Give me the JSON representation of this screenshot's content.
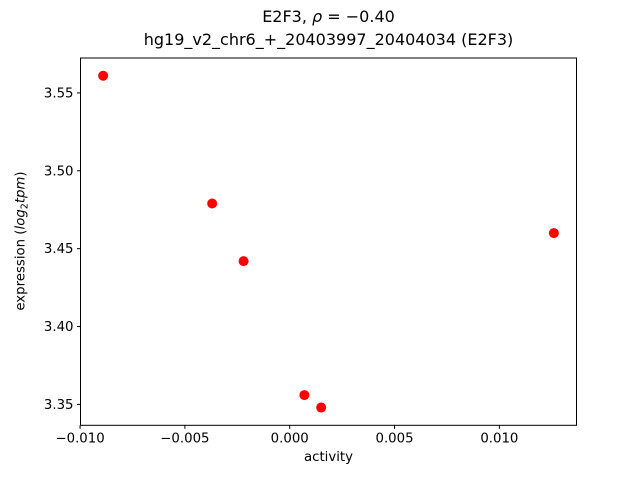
{
  "figure": {
    "title_line1_prefix": "E2F3, ",
    "title_line1_rho": "ρ",
    "title_line1_suffix": " = −0.40",
    "title_line2": "hg19_v2_chr6_+_20403997_20404034 (E2F3)",
    "xlabel": "activity",
    "ylabel_prefix": "expression (",
    "ylabel_log": "log",
    "ylabel_sub": "2",
    "ylabel_unit": "tpm",
    "ylabel_close": ")",
    "background_color": "#ffffff",
    "text_color": "#000000",
    "marker_color": "#ff0000"
  },
  "chart_data": {
    "type": "scatter",
    "title": "E2F3, ρ = −0.40",
    "subtitle": "hg19_v2_chr6_+_20403997_20404034 (E2F3)",
    "xlabel": "activity",
    "ylabel": "expression (log2tpm)",
    "grid": false,
    "legend_position": "none",
    "xlim": [
      -0.00998,
      0.01368
    ],
    "ylim": [
      3.3366,
      3.5724
    ],
    "xticks": {
      "values": [
        -0.01,
        -0.005,
        0.0,
        0.005,
        0.01
      ],
      "labels": [
        "−0.010",
        "−0.005",
        "0.000",
        "0.005",
        "0.010"
      ]
    },
    "yticks": {
      "values": [
        3.35,
        3.4,
        3.45,
        3.5,
        3.55
      ],
      "labels": [
        "3.35",
        "3.40",
        "3.45",
        "3.50",
        "3.55"
      ]
    },
    "series": [
      {
        "name": "E2F3",
        "marker": "circle",
        "color": "#ff0000",
        "radius_px": 5,
        "points": [
          {
            "x": -0.0089,
            "y": 3.561
          },
          {
            "x": -0.0037,
            "y": 3.479
          },
          {
            "x": -0.0022,
            "y": 3.442
          },
          {
            "x": 0.0007,
            "y": 3.356
          },
          {
            "x": 0.0015,
            "y": 3.348
          },
          {
            "x": 0.0126,
            "y": 3.46
          }
        ]
      }
    ]
  }
}
